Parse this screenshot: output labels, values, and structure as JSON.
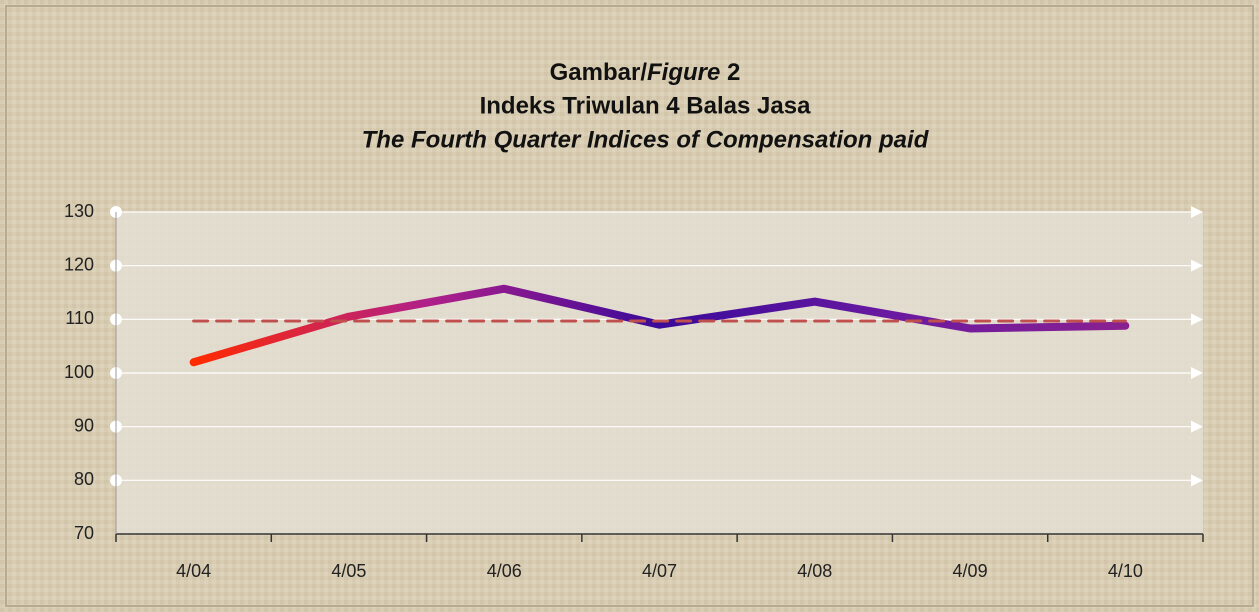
{
  "chart_data": {
    "type": "line",
    "title": [
      "Gambar/",
      "Figure",
      "2"
    ],
    "subtitle": "Indeks Triwulan 4  Balas Jasa",
    "subtitle2": "The Fourth Quarter Indices of Compensation paid",
    "categories": [
      "4/04",
      "4/05",
      "4/06",
      "4/07",
      "4/08",
      "4/09",
      "4/10"
    ],
    "series": [
      {
        "color": "#3a0a9a",
        "gradient": [
          "#ff2a00",
          "#b0208a",
          "#3a0a9a",
          "#6a1aa0",
          "#8a2090"
        ],
        "values": [
          102,
          110.5,
          115.7,
          109,
          113.3,
          108.3,
          108.8
        ]
      },
      {
        "color": "#c0504d",
        "dashed": true,
        "values": [
          109.7,
          109.7,
          109.7,
          109.7,
          109.7,
          109.7,
          109.7
        ]
      }
    ],
    "ylim": [
      70,
      130
    ],
    "yticks": [
      70,
      80,
      90,
      100,
      110,
      120,
      130
    ],
    "grid": true
  }
}
